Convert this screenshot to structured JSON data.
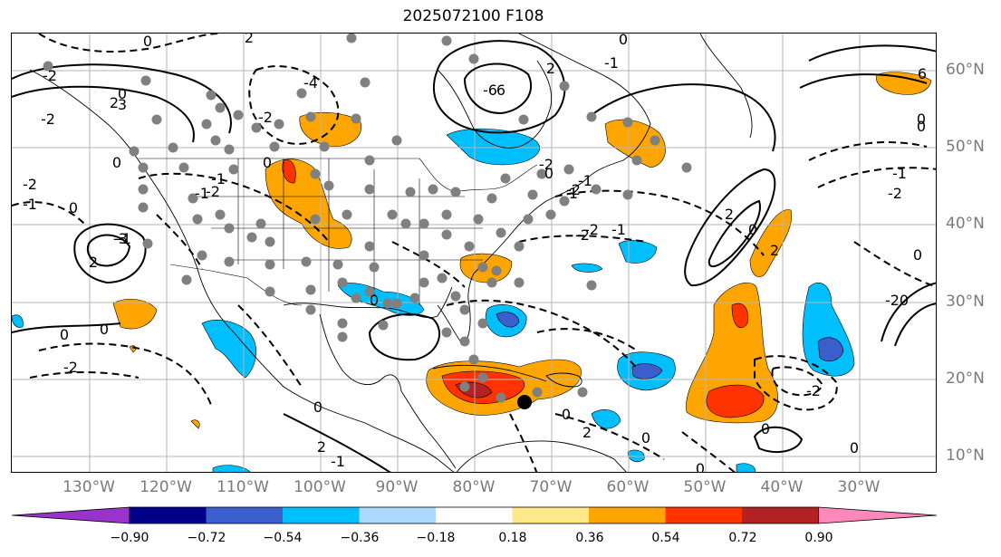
{
  "title": "2025072100 F108",
  "lon_labels": [
    "130°W",
    "120°W",
    "110°W",
    "100°W",
    "90°W",
    "80°W",
    "70°W",
    "60°W",
    "50°W",
    "40°W",
    "30°W"
  ],
  "lat_labels": [
    "60°N",
    "50°N",
    "40°N",
    "30°N",
    "20°N",
    "10°N"
  ],
  "colorbar": {
    "colors": [
      "#9933cc",
      "#000088",
      "#3a5fcd",
      "#00bfff",
      "#add8ff",
      "#ffffff",
      "#ffe88a",
      "#ffa500",
      "#ff3300",
      "#b22222",
      "#ff88bb"
    ],
    "tick_labels": [
      "−0.90",
      "−0.72",
      "−0.54",
      "−0.36",
      "−0.18",
      "0.18",
      "0.36",
      "0.54",
      "0.72",
      "0.90"
    ]
  },
  "contour_labels": [
    "0",
    "-2",
    "0",
    "2",
    "-6",
    "0",
    "2",
    "6",
    "0",
    "2",
    "-1",
    "-2",
    "3",
    "0",
    "-2",
    "-1",
    "0",
    "2",
    "-1",
    "-2",
    "0",
    "-2",
    "0",
    "6",
    "0",
    "-1",
    "-2",
    "-4",
    "-1",
    "2",
    "0",
    "2",
    "-3",
    "0",
    "-2",
    "0",
    "-1",
    "0",
    "-2",
    "-2",
    "0",
    "1",
    "-1",
    "-2",
    "0",
    "2",
    "0",
    "2",
    "-2",
    "-1",
    "-2",
    "0",
    "0",
    "-2",
    "-1",
    "0",
    "0",
    "0"
  ],
  "marker": "storm-center"
}
